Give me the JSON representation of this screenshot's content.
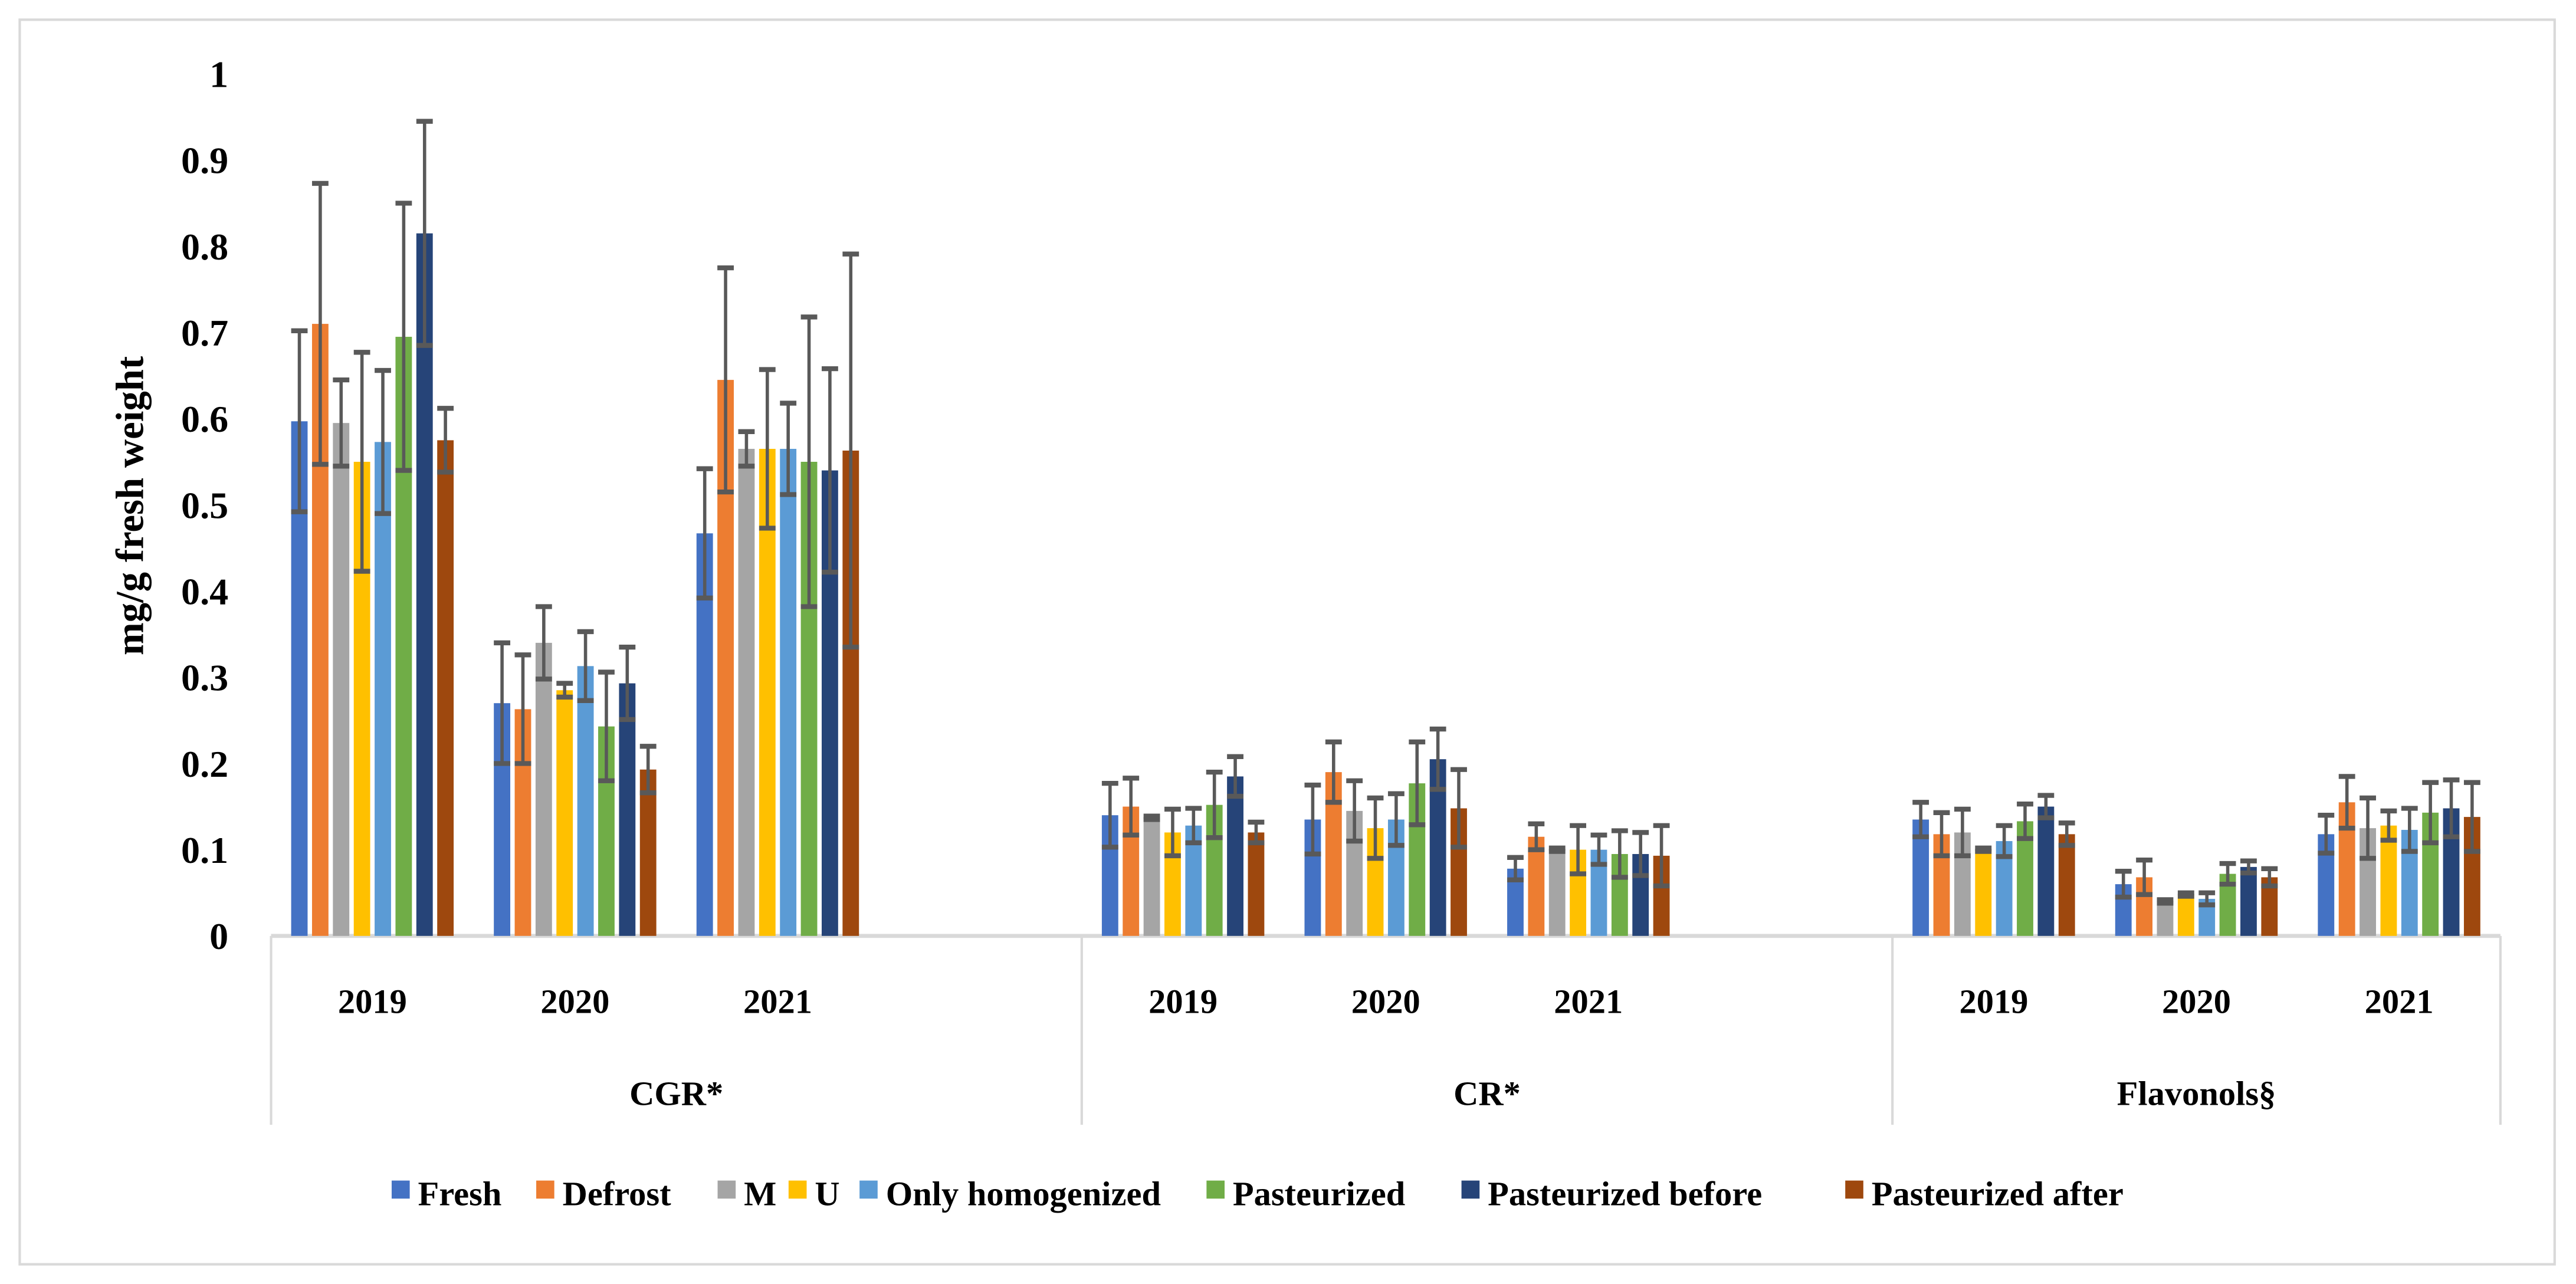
{
  "chart_data": {
    "type": "bar",
    "ylabel": "mg/g fresh weight",
    "ylim": [
      0,
      1
    ],
    "yticks": [
      0,
      0.1,
      0.2,
      0.3,
      0.4,
      0.5,
      0.6,
      0.7,
      0.8,
      0.9,
      1
    ],
    "grid": false,
    "legend_position": "bottom",
    "groups": [
      {
        "label": "CGR*",
        "years": [
          "2019",
          "2020",
          "2021"
        ]
      },
      {
        "label": "CR*",
        "years": [
          "2019",
          "2020",
          "2021"
        ]
      },
      {
        "label": "Flavonols§",
        "years": [
          "2019",
          "2020",
          "2021"
        ]
      }
    ],
    "series": [
      {
        "name": "Fresh",
        "color": "#4472C4",
        "values": [
          0.597,
          0.27,
          0.467,
          0.14,
          0.135,
          0.078,
          0.135,
          0.06,
          0.118
        ],
        "errors": [
          0.105,
          0.07,
          0.075,
          0.037,
          0.04,
          0.013,
          0.02,
          0.015,
          0.022
        ]
      },
      {
        "name": "Defrost",
        "color": "#ED7D31",
        "values": [
          0.71,
          0.263,
          0.645,
          0.15,
          0.19,
          0.115,
          0.118,
          0.068,
          0.155
        ],
        "errors": [
          0.163,
          0.063,
          0.13,
          0.033,
          0.035,
          0.015,
          0.025,
          0.02,
          0.03
        ]
      },
      {
        "name": "M",
        "color": "#A5A5A5",
        "values": [
          0.595,
          0.34,
          0.565,
          0.137,
          0.145,
          0.1,
          0.12,
          0.04,
          0.125
        ],
        "errors": [
          0.05,
          0.042,
          0.02,
          0.002,
          0.035,
          0.002,
          0.027,
          0.002,
          0.035
        ]
      },
      {
        "name": "U",
        "color": "#FFC000",
        "values": [
          0.55,
          0.285,
          0.565,
          0.12,
          0.125,
          0.1,
          0.1,
          0.048,
          0.128
        ],
        "errors": [
          0.127,
          0.008,
          0.092,
          0.027,
          0.035,
          0.028,
          0.002,
          0.002,
          0.017
        ]
      },
      {
        "name": "Only homogenized",
        "color": "#5B9BD5",
        "values": [
          0.573,
          0.313,
          0.565,
          0.128,
          0.135,
          0.1,
          0.11,
          0.043,
          0.123
        ],
        "errors": [
          0.083,
          0.04,
          0.053,
          0.02,
          0.03,
          0.017,
          0.018,
          0.007,
          0.025
        ]
      },
      {
        "name": "Pasteurized",
        "color": "#70AD47",
        "values": [
          0.695,
          0.243,
          0.55,
          0.152,
          0.177,
          0.095,
          0.133,
          0.072,
          0.143
        ],
        "errors": [
          0.155,
          0.063,
          0.168,
          0.038,
          0.048,
          0.027,
          0.02,
          0.012,
          0.035
        ]
      },
      {
        "name": "Pasteurized before",
        "color": "#264478",
        "values": [
          0.815,
          0.293,
          0.54,
          0.185,
          0.205,
          0.095,
          0.15,
          0.08,
          0.148
        ],
        "errors": [
          0.13,
          0.042,
          0.118,
          0.023,
          0.035,
          0.025,
          0.013,
          0.007,
          0.033
        ]
      },
      {
        "name": "Pasteurized after",
        "color": "#9E480E",
        "values": [
          0.575,
          0.193,
          0.563,
          0.12,
          0.148,
          0.093,
          0.118,
          0.068,
          0.138
        ],
        "errors": [
          0.037,
          0.027,
          0.228,
          0.012,
          0.045,
          0.035,
          0.013,
          0.01,
          0.04
        ]
      }
    ],
    "error_bar_color": "#595959"
  }
}
